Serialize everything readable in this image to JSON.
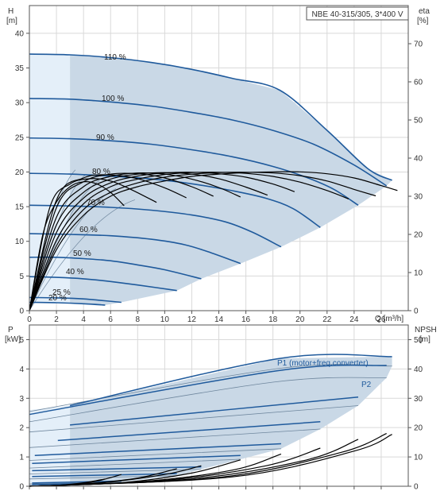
{
  "colors": {
    "envelope": "#c9d8e6",
    "region_light": "#e4eff9",
    "curve": "#1f5a9c",
    "thin_curve": "#6f879e",
    "eff_curve": "#000000",
    "grid": "#d9d9d9",
    "axis": "#555555"
  },
  "chart_data": [
    {
      "type": "line",
      "title": "NBE 40-315/305, 3*400 V",
      "xlabel": "Q [m³/h]",
      "ylabel_left": [
        "H",
        "[m]"
      ],
      "ylabel_right": [
        "eta",
        "[%]"
      ],
      "xlim": [
        0,
        28
      ],
      "ylim_left": [
        0,
        44
      ],
      "ylim_right": [
        0,
        80
      ],
      "x_ticks": [
        0,
        2,
        4,
        6,
        8,
        10,
        12,
        14,
        16,
        18,
        20,
        22,
        24,
        26
      ],
      "y_ticks_left": [
        0,
        5,
        10,
        15,
        20,
        25,
        30,
        35,
        40
      ],
      "y_ticks_right": [
        0,
        10,
        20,
        30,
        40,
        50,
        60,
        70
      ],
      "grid": true,
      "speed_labels": [
        "110 %",
        "100 %",
        "90 %",
        "80 %",
        "70 %",
        "60 %",
        "50 %",
        "40 %",
        "25 %",
        "20 %"
      ],
      "series": [
        {
          "speed": 110,
          "x": [
            0,
            3,
            6,
            9,
            12,
            15,
            18.5,
            22,
            25,
            26.8
          ],
          "values": [
            37,
            36.9,
            36.5,
            35.8,
            34.8,
            33.5,
            31.8,
            26,
            20.5,
            18.8
          ]
        },
        {
          "speed": 100,
          "x": [
            0,
            3,
            6,
            9,
            12,
            15,
            18,
            21,
            24,
            26.4
          ],
          "values": [
            30.6,
            30.5,
            30.1,
            29.5,
            28.6,
            27.5,
            26,
            24,
            21,
            18
          ]
        },
        {
          "speed": 90,
          "x": [
            0,
            3,
            6,
            9,
            12,
            15,
            18,
            20.5,
            22.5,
            24.3
          ],
          "values": [
            24.9,
            24.8,
            24.5,
            24,
            23.2,
            22.2,
            20.8,
            19.2,
            17.5,
            15.2
          ]
        },
        {
          "speed": 80,
          "x": [
            0,
            3,
            6,
            9,
            12,
            15,
            17.5,
            19.5,
            21.5
          ],
          "values": [
            19.8,
            19.7,
            19.4,
            19,
            18.3,
            17.3,
            16.2,
            14.7,
            12
          ]
        },
        {
          "speed": 70,
          "x": [
            0,
            3,
            6,
            9,
            12,
            14.5,
            16.5,
            18.6
          ],
          "values": [
            15.2,
            15.1,
            14.9,
            14.5,
            13.8,
            12.8,
            11.3,
            9.2
          ]
        },
        {
          "speed": 60,
          "x": [
            0,
            3,
            6,
            9,
            11.5,
            13.5,
            15.6
          ],
          "values": [
            11.1,
            11,
            10.8,
            10.3,
            9.5,
            8.3,
            6.8
          ]
        },
        {
          "speed": 50,
          "x": [
            0,
            2,
            4,
            6,
            8,
            10,
            12.7
          ],
          "values": [
            7.7,
            7.7,
            7.5,
            7.2,
            6.6,
            5.9,
            4.6
          ]
        },
        {
          "speed": 40,
          "x": [
            0,
            2,
            4,
            6,
            8,
            10.9
          ],
          "values": [
            4.9,
            4.8,
            4.6,
            4.2,
            3.7,
            2.9
          ]
        },
        {
          "speed": 25,
          "x": [
            0,
            2,
            4,
            6.8
          ],
          "values": [
            1.9,
            1.85,
            1.7,
            1.2
          ]
        },
        {
          "speed": 20,
          "x": [
            0,
            2,
            4,
            5.6
          ],
          "values": [
            1.2,
            1.15,
            1.0,
            0.8
          ]
        }
      ],
      "efficiency_series": [
        {
          "x": [
            0,
            2,
            4,
            6,
            8,
            10,
            12,
            14,
            16,
            18,
            20,
            22,
            24,
            26,
            27.2
          ],
          "values": [
            0,
            16,
            25,
            30,
            32.5,
            34,
            35.2,
            35.8,
            36.2,
            36.4,
            36.4,
            35.9,
            34.8,
            32.8,
            31.5
          ]
        },
        {
          "x": [
            0,
            2,
            4,
            6,
            8,
            10,
            12,
            14,
            16,
            18,
            20,
            22,
            24,
            25.6
          ],
          "values": [
            0,
            17,
            26.5,
            31,
            33.5,
            35,
            35.8,
            36.2,
            36.3,
            36.1,
            35.4,
            34,
            31.8,
            30.1
          ]
        },
        {
          "x": [
            0,
            2,
            4,
            6,
            8,
            10,
            12,
            14,
            16,
            18,
            20,
            22,
            23.6
          ],
          "values": [
            0,
            18.5,
            28,
            32.5,
            34.5,
            35.7,
            36.2,
            36.3,
            36.0,
            35.2,
            33.7,
            31.5,
            29.3
          ]
        },
        {
          "x": [
            0,
            2,
            4,
            6,
            8,
            10,
            12,
            14,
            16,
            18,
            19.6
          ],
          "values": [
            0,
            20.5,
            29.5,
            33.5,
            35.3,
            36.1,
            36.3,
            35.9,
            35.0,
            33.2,
            31.2
          ]
        },
        {
          "x": [
            0,
            2,
            4,
            6,
            8,
            10,
            12,
            14,
            16,
            17.6
          ],
          "values": [
            0,
            22.5,
            31,
            34.5,
            35.8,
            36.2,
            35.8,
            34.6,
            32.4,
            30.3
          ]
        },
        {
          "x": [
            0,
            2,
            4,
            6,
            8,
            10,
            12,
            14,
            15.6
          ],
          "values": [
            0,
            24.5,
            32.5,
            35.2,
            36.1,
            35.8,
            34.5,
            32.3,
            29.8
          ]
        },
        {
          "x": [
            0,
            2,
            4,
            6,
            8,
            10,
            12,
            13.6
          ],
          "values": [
            0,
            27,
            33.8,
            35.8,
            35.9,
            34.8,
            32.5,
            30
          ]
        },
        {
          "x": [
            0,
            2,
            4,
            6,
            8,
            10,
            11.6
          ],
          "values": [
            0,
            29,
            34.8,
            35.6,
            34.6,
            32.2,
            29.6
          ]
        },
        {
          "x": [
            0,
            1.5,
            3,
            4.5,
            6,
            7.5,
            9.4
          ],
          "values": [
            0,
            27,
            33.2,
            34.6,
            34,
            31.8,
            28.4
          ]
        },
        {
          "x": [
            0,
            1,
            2,
            3,
            4,
            5,
            6,
            7
          ],
          "values": [
            0,
            20,
            28.5,
            32.5,
            33.8,
            33.2,
            31,
            27.5
          ]
        }
      ]
    },
    {
      "type": "line",
      "xlabel": "Q [m³/h]",
      "ylabel_left": [
        "P",
        "[kW]"
      ],
      "ylabel_right": [
        "NPSH",
        "[m]"
      ],
      "xlim": [
        0,
        28
      ],
      "ylim_left": [
        0,
        5.5
      ],
      "ylim_right": [
        0,
        55
      ],
      "y_ticks_left": [
        0,
        1,
        2,
        3,
        4,
        5
      ],
      "y_ticks_right": [
        0,
        10,
        20,
        30,
        40,
        50
      ],
      "grid": true,
      "series_labels": [
        "P1 (motor+freq.converter)",
        "P2"
      ],
      "p1_series": [
        {
          "x": [
            3,
            18.5,
            26.8
          ],
          "values": [
            2.75,
            4.36,
            4.42
          ]
        },
        {
          "x": [
            0,
            18.5,
            26.4
          ],
          "values": [
            2.45,
            3.95,
            4.12
          ]
        },
        {
          "x": [
            3,
            24.3
          ],
          "values": [
            2.09,
            3.04
          ]
        },
        {
          "x": [
            2.1,
            21.5
          ],
          "values": [
            1.56,
            2.2
          ]
        },
        {
          "x": [
            0.4,
            18.6
          ],
          "values": [
            1.05,
            1.45
          ]
        },
        {
          "x": [
            0.2,
            15.6
          ],
          "values": [
            0.78,
            1.05
          ]
        },
        {
          "x": [
            0.2,
            12.7
          ],
          "values": [
            0.53,
            0.66
          ]
        },
        {
          "x": [
            0.2,
            10.9
          ],
          "values": [
            0.33,
            0.43
          ]
        },
        {
          "x": [
            0.2,
            6.8
          ],
          "values": [
            0.11,
            0.18
          ]
        },
        {
          "x": [
            0.2,
            5.6
          ],
          "values": [
            0.06,
            0.1
          ]
        }
      ],
      "p2_series": [
        {
          "x": [
            0,
            18.5,
            26.8
          ],
          "values": [
            2.55,
            4.02,
            4.1
          ]
        },
        {
          "x": [
            0,
            18,
            26.4
          ],
          "values": [
            2.2,
            3.55,
            3.7
          ]
        },
        {
          "x": [
            0,
            24.3
          ],
          "values": [
            1.85,
            2.75
          ]
        },
        {
          "x": [
            0,
            21.5
          ],
          "values": [
            1.32,
            1.95
          ]
        },
        {
          "x": [
            0,
            18.6
          ],
          "values": [
            0.88,
            1.28
          ]
        },
        {
          "x": [
            0,
            15.6
          ],
          "values": [
            0.62,
            0.92
          ]
        },
        {
          "x": [
            0,
            12.7
          ],
          "values": [
            0.42,
            0.58
          ]
        },
        {
          "x": [
            0,
            10.9
          ],
          "values": [
            0.25,
            0.36
          ]
        },
        {
          "x": [
            0,
            6.8
          ],
          "values": [
            0.08,
            0.14
          ]
        },
        {
          "x": [
            0,
            5.6
          ],
          "values": [
            0.04,
            0.08
          ]
        }
      ],
      "npsh_series": [
        {
          "x": [
            0,
            2,
            4,
            5.6
          ],
          "values": [
            0,
            0.3,
            1.2,
            2.5
          ]
        },
        {
          "x": [
            0,
            3,
            5,
            6.8
          ],
          "values": [
            0,
            0.5,
            1.8,
            4
          ]
        },
        {
          "x": [
            0,
            4,
            8,
            10.9
          ],
          "values": [
            0,
            0.8,
            2.8,
            6
          ]
        },
        {
          "x": [
            0,
            5,
            10,
            12.7
          ],
          "values": [
            0,
            1,
            4,
            7
          ]
        },
        {
          "x": [
            0,
            7,
            12,
            15.6
          ],
          "values": [
            0,
            1.3,
            4.5,
            9
          ]
        },
        {
          "x": [
            0,
            8,
            15,
            18.6
          ],
          "values": [
            0,
            1.5,
            5.5,
            11
          ]
        },
        {
          "x": [
            0,
            10,
            17.5,
            21.5
          ],
          "values": [
            0,
            2,
            7,
            13
          ]
        },
        {
          "x": [
            0,
            12,
            20.5,
            24.3
          ],
          "values": [
            0,
            2.5,
            9,
            16
          ]
        },
        {
          "x": [
            0,
            14,
            23,
            26.4
          ],
          "values": [
            0,
            3,
            11.5,
            18
          ]
        },
        {
          "x": [
            0,
            15,
            24,
            26.8
          ],
          "values": [
            0,
            3.2,
            12,
            17.7
          ]
        }
      ]
    }
  ]
}
